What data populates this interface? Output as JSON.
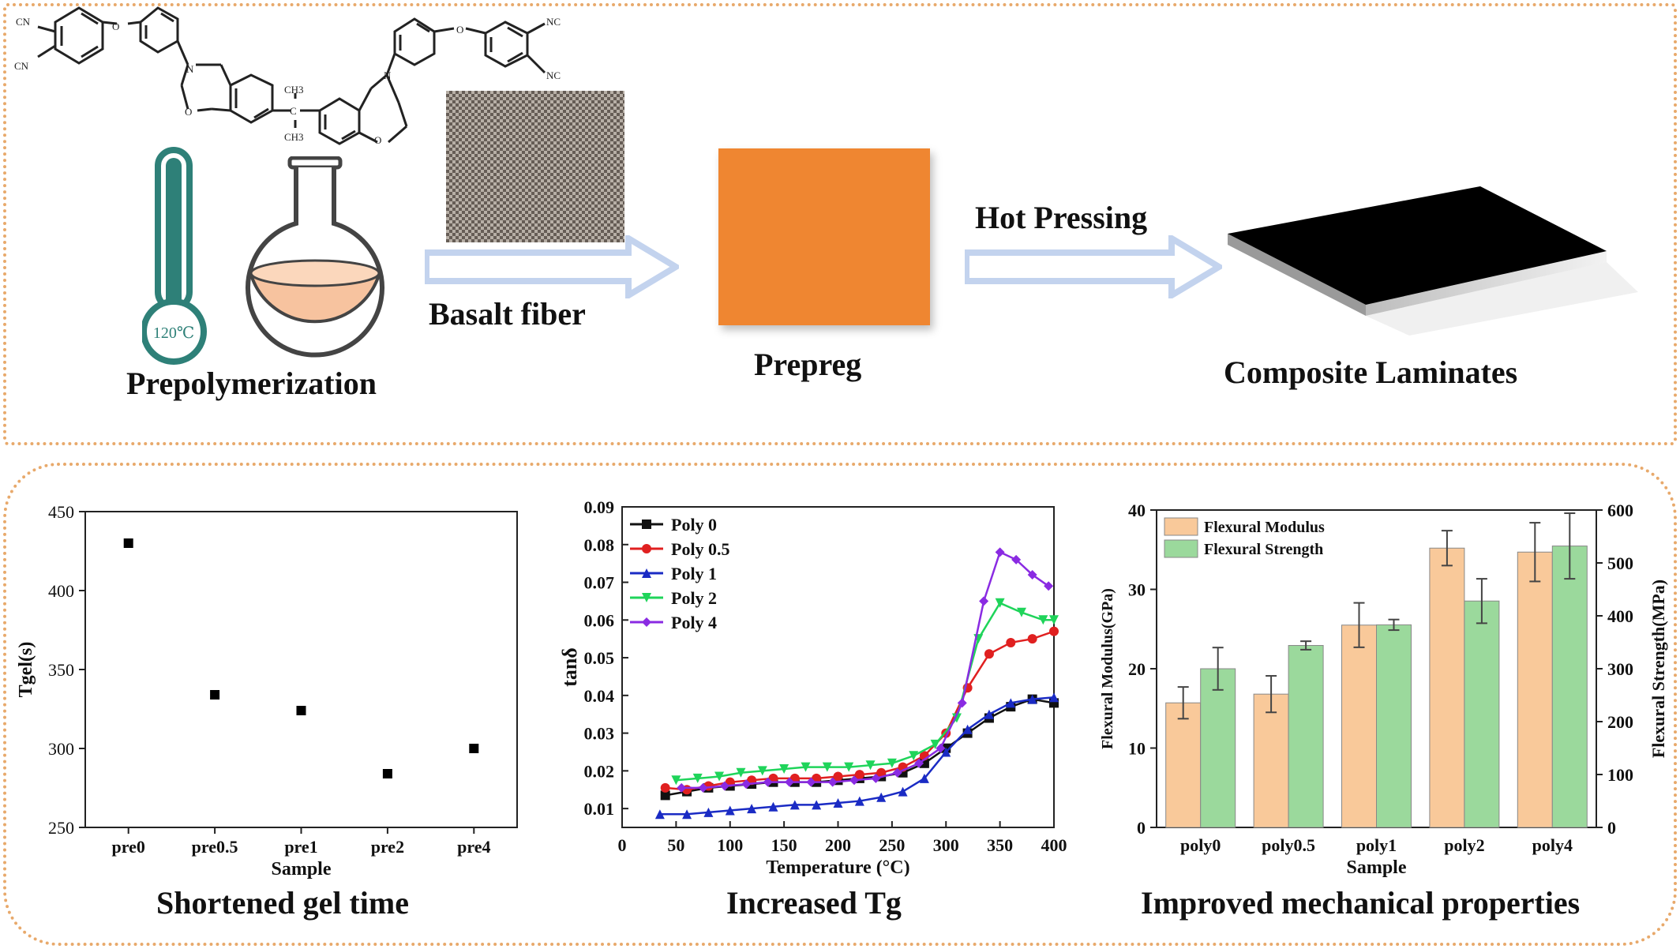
{
  "process": {
    "prepolymerization_label": "Prepolymerization",
    "thermometer_reading": "120℃",
    "basalt_label": "Basalt fiber",
    "prepreg_label": "Prepreg",
    "hot_pressing_label": "Hot Pressing",
    "laminate_label": "Composite Laminates",
    "structure_labels": {
      "cn1": "CN",
      "cn2": "CN",
      "nc1": "NC",
      "nc2": "NC",
      "n1": "N",
      "n2": "N",
      "o1": "O",
      "o2": "O",
      "o3": "O",
      "o4": "O",
      "c": "C",
      "ch3a": "CH3",
      "ch3b": "CH3"
    }
  },
  "captions": {
    "gel": "Shortened gel time",
    "tg": "Increased Tg",
    "mech": "Improved mechanical properties"
  },
  "colors": {
    "accent_border": "#e8a96b",
    "prepreg": "#ef8631",
    "arrow": "#c3d3ee",
    "thermo": "#2e8078"
  },
  "chart_data": [
    {
      "type": "scatter",
      "xlabel": "Sample",
      "ylabel": "Tgel(s)",
      "categories": [
        "pre0",
        "pre0.5",
        "pre1",
        "pre2",
        "pre4"
      ],
      "values": [
        430,
        334,
        324,
        284,
        300
      ],
      "ylim": [
        250,
        450
      ],
      "yticks": [
        250,
        300,
        350,
        400,
        450
      ]
    },
    {
      "type": "line",
      "xlabel": "Temperature (°C)",
      "ylabel": "tanδ",
      "xlim": [
        0,
        400
      ],
      "ylim": [
        0.005,
        0.09
      ],
      "xticks": [
        0,
        50,
        100,
        150,
        200,
        250,
        300,
        350,
        400
      ],
      "yticks": [
        0.01,
        0.02,
        0.03,
        0.04,
        0.05,
        0.06,
        0.07,
        0.08,
        0.09
      ],
      "legend_position": "top-left",
      "series": [
        {
          "name": "Poly 0",
          "color": "#111111",
          "marker": "square",
          "x": [
            40,
            60,
            80,
            100,
            120,
            140,
            160,
            180,
            200,
            220,
            240,
            260,
            280,
            300,
            320,
            340,
            360,
            380,
            400
          ],
          "y": [
            0.0135,
            0.0145,
            0.0155,
            0.016,
            0.0165,
            0.017,
            0.017,
            0.017,
            0.0175,
            0.018,
            0.0185,
            0.0195,
            0.022,
            0.026,
            0.03,
            0.034,
            0.037,
            0.039,
            0.038
          ]
        },
        {
          "name": "Poly 0.5",
          "color": "#e02020",
          "marker": "circle",
          "x": [
            40,
            60,
            80,
            100,
            120,
            140,
            160,
            180,
            200,
            220,
            240,
            260,
            280,
            300,
            320,
            340,
            360,
            380,
            400
          ],
          "y": [
            0.0155,
            0.015,
            0.016,
            0.017,
            0.0175,
            0.018,
            0.018,
            0.018,
            0.0185,
            0.019,
            0.0195,
            0.021,
            0.024,
            0.03,
            0.042,
            0.051,
            0.054,
            0.055,
            0.057
          ]
        },
        {
          "name": "Poly 1",
          "color": "#1a2bc4",
          "marker": "triangle-up",
          "x": [
            35,
            60,
            80,
            100,
            120,
            140,
            160,
            180,
            200,
            220,
            240,
            260,
            280,
            300,
            320,
            340,
            360,
            380,
            400
          ],
          "y": [
            0.0085,
            0.0085,
            0.009,
            0.0095,
            0.01,
            0.0105,
            0.011,
            0.011,
            0.0115,
            0.012,
            0.013,
            0.0145,
            0.018,
            0.025,
            0.031,
            0.035,
            0.038,
            0.039,
            0.0395
          ]
        },
        {
          "name": "Poly 2",
          "color": "#1fd45a",
          "marker": "triangle-down",
          "x": [
            50,
            70,
            90,
            110,
            130,
            150,
            170,
            190,
            210,
            230,
            250,
            270,
            290,
            310,
            330,
            350,
            370,
            390,
            400
          ],
          "y": [
            0.0175,
            0.018,
            0.0185,
            0.0195,
            0.02,
            0.0205,
            0.021,
            0.021,
            0.021,
            0.0215,
            0.022,
            0.024,
            0.027,
            0.034,
            0.055,
            0.0645,
            0.062,
            0.06,
            0.06
          ]
        },
        {
          "name": "Poly 4",
          "color": "#8a2be2",
          "marker": "diamond",
          "x": [
            55,
            75,
            95,
            115,
            135,
            155,
            175,
            195,
            215,
            235,
            255,
            275,
            295,
            315,
            335,
            350,
            365,
            380,
            395
          ],
          "y": [
            0.0155,
            0.0155,
            0.016,
            0.0165,
            0.017,
            0.017,
            0.017,
            0.017,
            0.0175,
            0.018,
            0.0195,
            0.022,
            0.026,
            0.038,
            0.065,
            0.078,
            0.076,
            0.072,
            0.069
          ]
        }
      ]
    },
    {
      "type": "bar",
      "xlabel": "Sample",
      "ylabel": "Flexural Modulus(GPa)",
      "y2label": "Flexural Strength(MPa)",
      "categories": [
        "poly0",
        "poly0.5",
        "poly1",
        "poly2",
        "poly4"
      ],
      "ylim": [
        0,
        40
      ],
      "yticks": [
        0,
        10,
        20,
        30,
        40
      ],
      "y2lim": [
        0,
        600
      ],
      "y2ticks": [
        0,
        100,
        200,
        300,
        400,
        500,
        600
      ],
      "legend_position": "top-left",
      "series": [
        {
          "name": "Flexural Modulus",
          "axis": "left",
          "color": "#f9c99a",
          "values": [
            15.7,
            16.8,
            25.5,
            35.2,
            34.7
          ],
          "errors": [
            2.0,
            2.3,
            2.8,
            2.2,
            3.7
          ]
        },
        {
          "name": "Flexural Strength",
          "axis": "right",
          "color": "#9bd99c",
          "values": [
            300,
            344,
            383,
            428,
            532
          ],
          "errors": [
            40,
            8,
            10,
            42,
            62
          ]
        }
      ]
    }
  ]
}
